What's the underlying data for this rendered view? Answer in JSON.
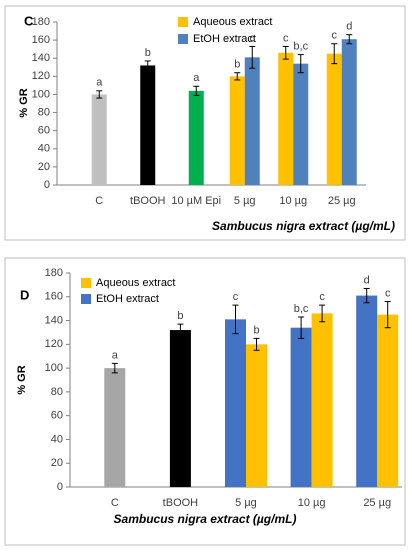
{
  "chart_data": [
    {
      "type": "bar",
      "panel": "C",
      "y_label": "% GR",
      "x_label": "Sambucus nigra extract (µg/mL)",
      "categories": [
        "C",
        "tBOOH",
        "10 µM Epi",
        "5 µg",
        "10 µg",
        "25 µg"
      ],
      "ylim": [
        0,
        180
      ],
      "yticks": [
        0,
        20,
        40,
        60,
        80,
        100,
        120,
        140,
        160,
        180
      ],
      "grid": false,
      "legend": "top",
      "reverse_pairs": false,
      "series": [
        {
          "colors": [
            "#bfbfbf",
            "#000000",
            "#00b050",
            null,
            null,
            null
          ],
          "values": [
            100,
            132,
            104,
            null,
            null,
            null
          ],
          "errors": [
            4,
            5,
            5,
            null,
            null,
            null
          ],
          "letters": [
            "a",
            "b",
            "a",
            null,
            null,
            null
          ]
        },
        {
          "name": "Aqueous extract",
          "color": "#ffc000",
          "values": [
            null,
            null,
            null,
            120,
            146,
            145
          ],
          "errors": [
            null,
            null,
            null,
            4,
            7,
            11
          ],
          "letters": [
            null,
            null,
            null,
            "b",
            "c",
            "c"
          ]
        },
        {
          "name": "EtOH extract",
          "color": "#4f81bd",
          "values": [
            null,
            null,
            null,
            141,
            134,
            161
          ],
          "errors": [
            null,
            null,
            null,
            12,
            10,
            5
          ],
          "letters": [
            null,
            null,
            null,
            "c",
            "b,c",
            "d"
          ]
        }
      ]
    },
    {
      "type": "bar",
      "panel": "D",
      "y_label": "% GR",
      "x_label": "Sambucus nigra extract (µg/mL)",
      "categories": [
        "C",
        "tBOOH",
        "5 µg",
        "10 µg",
        "25 µg"
      ],
      "ylim": [
        0,
        180
      ],
      "yticks": [
        0,
        20,
        40,
        60,
        80,
        100,
        120,
        140,
        160,
        180
      ],
      "grid": false,
      "legend": "top-left",
      "reverse_pairs": true,
      "series": [
        {
          "colors": [
            "#a6a6a6",
            "#000000",
            null,
            null,
            null
          ],
          "values": [
            100,
            132,
            null,
            null,
            null
          ],
          "errors": [
            4,
            5,
            null,
            null,
            null
          ],
          "letters": [
            "a",
            "b",
            null,
            null,
            null
          ]
        },
        {
          "name": "Aqueous extract",
          "color": "#ffc000",
          "values": [
            null,
            null,
            120,
            146,
            145
          ],
          "errors": [
            null,
            null,
            5,
            7,
            11
          ],
          "letters": [
            null,
            null,
            "b",
            "c",
            "c"
          ]
        },
        {
          "name": "EtOH extract",
          "color": "#4472c4",
          "values": [
            null,
            null,
            141,
            134,
            161
          ],
          "errors": [
            null,
            null,
            12,
            9,
            6
          ],
          "letters": [
            null,
            null,
            "c",
            "b,c",
            "d"
          ]
        }
      ]
    }
  ]
}
